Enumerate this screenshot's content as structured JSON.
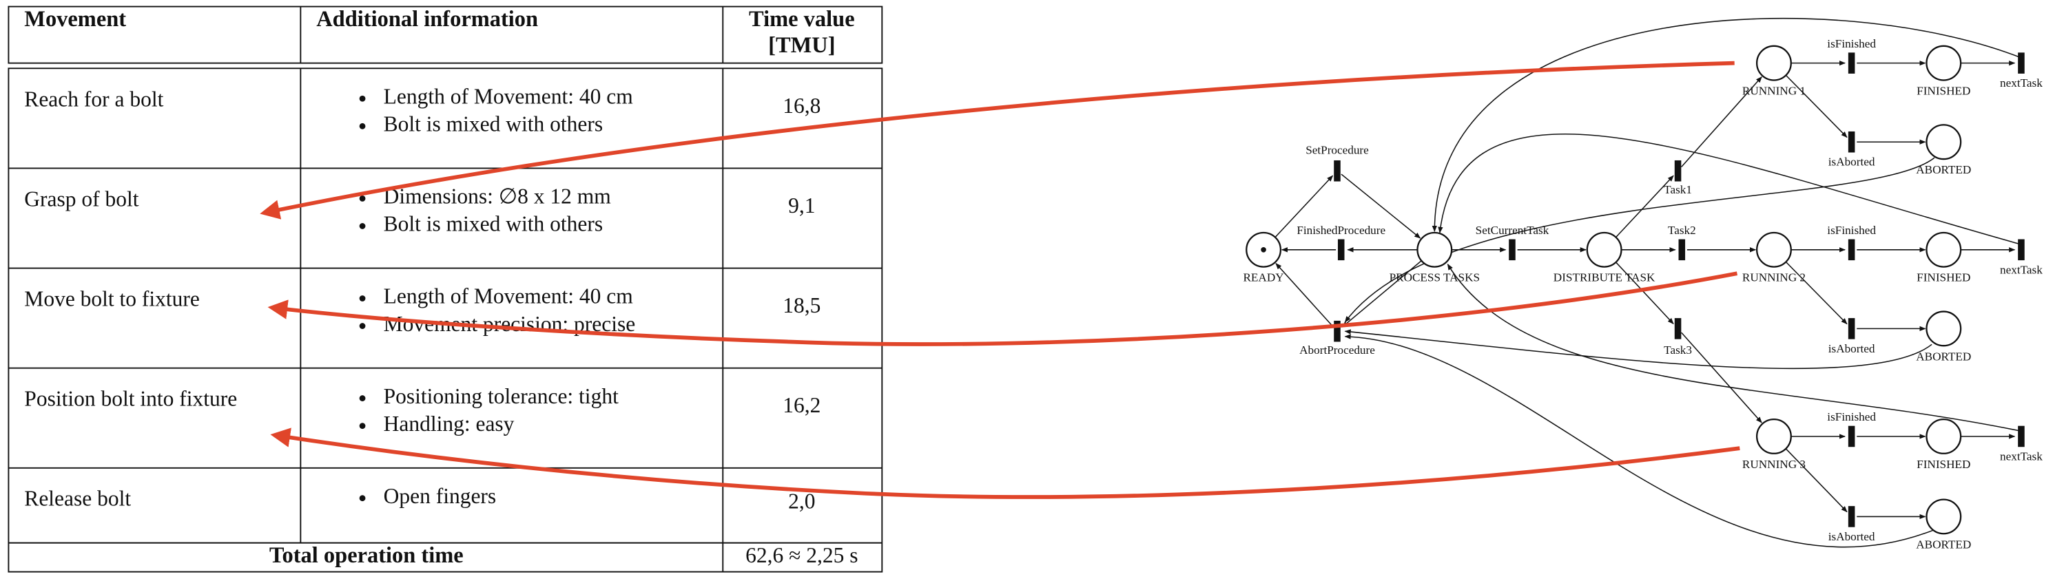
{
  "table": {
    "headers": [
      "Movement",
      "Additional information",
      [
        "Time value",
        "[TMU]"
      ]
    ],
    "rows": [
      {
        "movement": "Reach for a bolt",
        "info": [
          "Length of Movement: 40 cm",
          "Bolt is mixed with others"
        ],
        "time": "16,8"
      },
      {
        "movement": "Grasp of bolt",
        "info": [
          "Dimensions: ∅8 x 12 mm",
          "Bolt is mixed with others"
        ],
        "time": "9,1"
      },
      {
        "movement": "Move bolt to fixture",
        "info": [
          "Length of Movement: 40 cm",
          "Movement precision: precise"
        ],
        "time": "18,5"
      },
      {
        "movement": "Position bolt into fixture",
        "info": [
          "Positioning tolerance: tight",
          "Handling: easy"
        ],
        "time": "16,2"
      },
      {
        "movement": "Release bolt",
        "info": [
          "Open fingers"
        ],
        "time": "2,0"
      }
    ],
    "total": {
      "label": "Total operation time",
      "value": "62,6 ≈ 2,25 s"
    }
  },
  "petri_net": {
    "places": [
      {
        "label": "READY"
      },
      {
        "label": "PROCESS TASKS"
      },
      {
        "label": "DISTRIBUTE TASK"
      },
      {
        "label": "RUNNING 1"
      },
      {
        "label": "FINISHED"
      },
      {
        "label": "ABORTED"
      },
      {
        "label": "RUNNING 2"
      },
      {
        "label": "FINISHED"
      },
      {
        "label": "ABORTED"
      },
      {
        "label": "RUNNING 3"
      },
      {
        "label": "FINISHED"
      },
      {
        "label": "ABORTED"
      }
    ],
    "transitions": [
      {
        "label": "SetProcedure"
      },
      {
        "label": "FinishedProcedure"
      },
      {
        "label": "AbortProcedure"
      },
      {
        "label": "SetCurrentTask"
      },
      {
        "label": "Task1"
      },
      {
        "label": "Task2"
      },
      {
        "label": "Task3"
      },
      {
        "label": "isFinished"
      },
      {
        "label": "isAborted"
      },
      {
        "label": "nextTask"
      },
      {
        "label": "isFinished"
      },
      {
        "label": "isAborted"
      },
      {
        "label": "nextTask"
      },
      {
        "label": "isFinished"
      },
      {
        "label": "isAborted"
      },
      {
        "label": "nextTask"
      }
    ]
  }
}
